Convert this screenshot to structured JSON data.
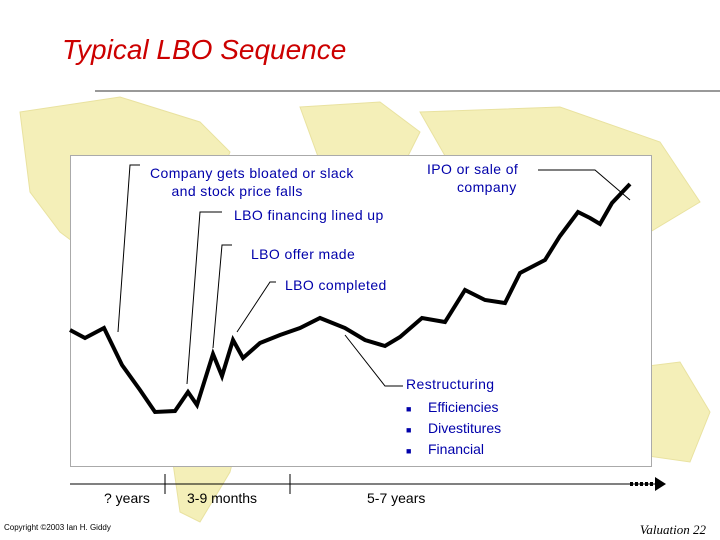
{
  "slide": {
    "title": "Typical LBO Sequence",
    "copyright": "Copyright ©2003 Ian H. Giddy",
    "footer": "Valuation  22"
  },
  "annotations": {
    "bloated": "Company gets bloated or slack\n     and stock price falls",
    "ipo": "IPO or sale of\n       company",
    "financing": "LBO financing lined up",
    "offer": "LBO offer made",
    "completed": "LBO completed",
    "restructuring": "Restructuring",
    "restructuring_items": [
      "Efficiencies",
      "Divestitures",
      "Financial"
    ]
  },
  "timeline": {
    "phase1": "? years",
    "phase2": "3-9 months",
    "phase3": "5-7 years"
  },
  "colors": {
    "title": "#cc0000",
    "label": "#0000aa",
    "line": "#000000",
    "map": "#f4efb8"
  }
}
